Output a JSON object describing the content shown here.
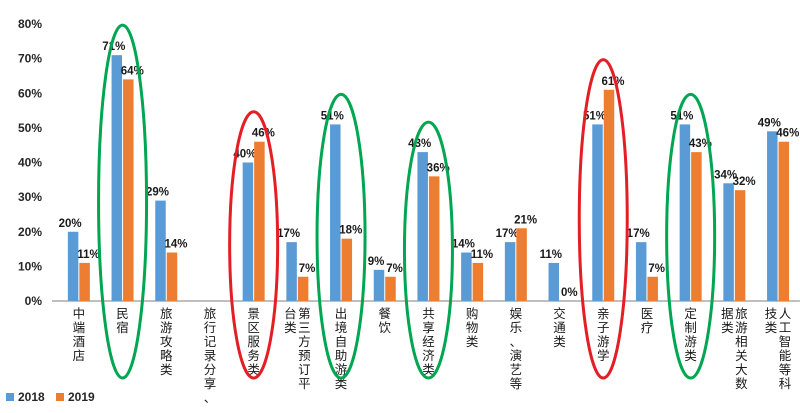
{
  "chart_data": {
    "type": "bar",
    "categories": [
      "中端酒店",
      "民宿",
      "旅游攻略类",
      "旅行记录分享、",
      "景区服务类",
      "第三方预订平台类",
      "出境自助游类",
      "餐饮",
      "共享经济类",
      "购物类",
      "娱乐、演艺等",
      "交通类",
      "亲子游学",
      "医疗",
      "定制游类",
      "旅游相关大数据类",
      "人工智能等科技类"
    ],
    "category_columns": [
      [
        "中端酒店"
      ],
      [
        "民宿"
      ],
      [
        "旅游攻略类"
      ],
      [
        "旅行记录分享、"
      ],
      [
        "景区服务类"
      ],
      [
        "第三方预订平",
        "台类"
      ],
      [
        "出境自助游类"
      ],
      [
        "餐饮"
      ],
      [
        "共享经济类"
      ],
      [
        "购物类"
      ],
      [
        "娱乐、演艺等"
      ],
      [
        "交通类"
      ],
      [
        "亲子游学"
      ],
      [
        "医疗"
      ],
      [
        "定制游类"
      ],
      [
        "旅游相关大数",
        "据类"
      ],
      [
        "人工智能等科",
        "技类"
      ]
    ],
    "series": [
      {
        "name": "2018",
        "color": "#5B9BD5",
        "values": [
          20,
          71,
          29,
          null,
          40,
          17,
          51,
          9,
          43,
          14,
          17,
          11,
          51,
          17,
          51,
          34,
          49
        ]
      },
      {
        "name": "2019",
        "color": "#ED7D31",
        "values": [
          11,
          64,
          14,
          null,
          46,
          7,
          18,
          7,
          36,
          11,
          21,
          0,
          61,
          7,
          43,
          32,
          46
        ]
      }
    ],
    "ylim": [
      0,
      80
    ],
    "yticks": [
      "0%",
      "10%",
      "20%",
      "30%",
      "40%",
      "50%",
      "60%",
      "70%",
      "80%"
    ],
    "value_suffix": "%",
    "legend_position": "bottom-left",
    "highlight_ellipses": [
      {
        "category": "民宿",
        "color": "#00A651"
      },
      {
        "category": "景区服务类",
        "color": "#E31E24"
      },
      {
        "category": "出境自助游类",
        "color": "#00A651"
      },
      {
        "category": "共享经济类",
        "color": "#00A651"
      },
      {
        "category": "亲子游学",
        "color": "#E31E24"
      },
      {
        "category": "定制游类",
        "color": "#00A651"
      }
    ],
    "grid": false
  }
}
